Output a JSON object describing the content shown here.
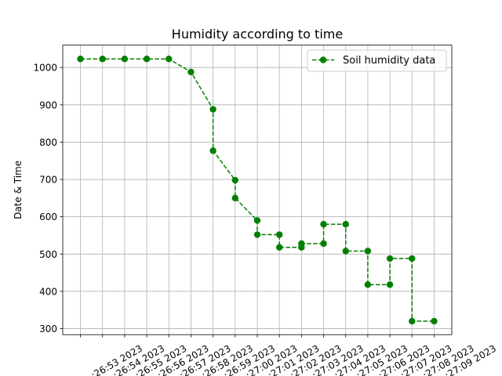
{
  "chart_data": {
    "type": "line",
    "title": "Humidity according to time",
    "xlabel": "",
    "ylabel": "Date & Time",
    "x": [
      ":26:53 2023",
      ":26:54 2023",
      ":26:55 2023",
      ":26:56 2023",
      ":26:57 2023",
      ":26:58 2023",
      ":26:59 2023",
      ":27:00 2023",
      ":27:01 2023",
      ":27:02 2023",
      ":27:03 2023",
      ":27:04 2023",
      ":27:05 2023",
      ":27:06 2023",
      ":27:07 2023",
      ":27:08 2023",
      ":27:09 2023"
    ],
    "series": [
      {
        "name": "Soil humidity data",
        "color": "#008000",
        "points": [
          [
            0,
            1023
          ],
          [
            1,
            1023
          ],
          [
            2,
            1023
          ],
          [
            3,
            1023
          ],
          [
            4,
            1023
          ],
          [
            5,
            988
          ],
          [
            6,
            888
          ],
          [
            6,
            777
          ],
          [
            7,
            698
          ],
          [
            7,
            650
          ],
          [
            8,
            590
          ],
          [
            8,
            552
          ],
          [
            9,
            552
          ],
          [
            9,
            518
          ],
          [
            10,
            518
          ],
          [
            10,
            528
          ],
          [
            11,
            528
          ],
          [
            11,
            580
          ],
          [
            12,
            580
          ],
          [
            12,
            508
          ],
          [
            13,
            508
          ],
          [
            13,
            418
          ],
          [
            14,
            418
          ],
          [
            14,
            488
          ],
          [
            15,
            488
          ],
          [
            15,
            320
          ],
          [
            16,
            320
          ]
        ]
      }
    ],
    "yticks": [
      300,
      400,
      500,
      600,
      700,
      800,
      900,
      1000
    ],
    "ylim": [
      284,
      1060
    ],
    "xlim": [
      -0.8,
      16.8
    ],
    "grid": true,
    "legend_position": "top-right"
  }
}
